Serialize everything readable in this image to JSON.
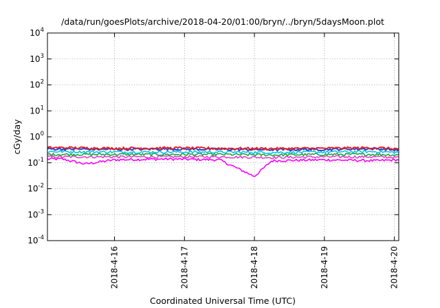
{
  "chart_data": {
    "type": "line",
    "title": "/data/run/goesPlots/archive/2018-04-20/01:00/bryn/../bryn/5daysMoon.plot",
    "xlabel": "Coordinated Universal Time (UTC)",
    "ylabel": "cGy/day",
    "yscale": "log",
    "ylim": [
      0.0001,
      10000
    ],
    "yticks": [
      {
        "value": 0.0001,
        "base": "10",
        "exp": "-4"
      },
      {
        "value": 0.001,
        "base": "10",
        "exp": "-3"
      },
      {
        "value": 0.01,
        "base": "10",
        "exp": "-2"
      },
      {
        "value": 0.1,
        "base": "10",
        "exp": "-1"
      },
      {
        "value": 1,
        "base": "10",
        "exp": "0"
      },
      {
        "value": 10,
        "base": "10",
        "exp": "1"
      },
      {
        "value": 100,
        "base": "10",
        "exp": "2"
      },
      {
        "value": 1000,
        "base": "10",
        "exp": "3"
      },
      {
        "value": 10000,
        "base": "10",
        "exp": "4"
      }
    ],
    "xlim": [
      "2018-04-15 01:00",
      "2018-04-20 01:30"
    ],
    "xticks": [
      "2018-4-16",
      "2018-4-17",
      "2018-4-18",
      "2018-4-19",
      "2018-4-20"
    ],
    "grid": true,
    "legend": "none",
    "series": [
      {
        "color": "#e0202a",
        "baseline": 0.36,
        "dips": [],
        "x": [
          "2018-04-15 06:00",
          "2018-04-16 00:00",
          "2018-04-16 18:00",
          "2018-04-17 12:00",
          "2018-04-18 06:00",
          "2018-04-19 00:00",
          "2018-04-19 18:00",
          "2018-04-20 01:00"
        ],
        "values": [
          0.38,
          0.36,
          0.37,
          0.36,
          0.35,
          0.36,
          0.38,
          0.34
        ]
      },
      {
        "color": "#2040e0",
        "baseline": 0.33,
        "dips": [],
        "x": [
          "2018-04-15 06:00",
          "2018-04-16 00:00",
          "2018-04-16 18:00",
          "2018-04-17 12:00",
          "2018-04-18 06:00",
          "2018-04-19 00:00",
          "2018-04-19 18:00",
          "2018-04-20 01:00"
        ],
        "values": [
          0.34,
          0.33,
          0.34,
          0.33,
          0.32,
          0.33,
          0.35,
          0.31
        ]
      },
      {
        "color": "#00c8e0",
        "baseline": 0.26,
        "dips": [],
        "x": [
          "2018-04-15 06:00",
          "2018-04-16 00:00",
          "2018-04-16 18:00",
          "2018-04-17 12:00",
          "2018-04-18 06:00",
          "2018-04-19 00:00",
          "2018-04-19 18:00",
          "2018-04-20 01:00"
        ],
        "values": [
          0.27,
          0.26,
          0.26,
          0.26,
          0.25,
          0.26,
          0.27,
          0.25
        ]
      },
      {
        "color": "#20a040",
        "baseline": 0.21,
        "dips": [],
        "x": [
          "2018-04-15 06:00",
          "2018-04-16 00:00",
          "2018-04-16 18:00",
          "2018-04-17 12:00",
          "2018-04-18 06:00",
          "2018-04-19 00:00",
          "2018-04-19 18:00",
          "2018-04-20 01:00"
        ],
        "values": [
          0.21,
          0.21,
          0.21,
          0.21,
          0.2,
          0.21,
          0.21,
          0.2
        ]
      },
      {
        "color": "#e040c0",
        "baseline": 0.17,
        "dips": [],
        "x": [
          "2018-04-15 06:00",
          "2018-04-16 00:00",
          "2018-04-16 18:00",
          "2018-04-17 12:00",
          "2018-04-18 06:00",
          "2018-04-19 00:00",
          "2018-04-19 18:00",
          "2018-04-20 01:00"
        ],
        "values": [
          0.17,
          0.17,
          0.17,
          0.17,
          0.16,
          0.17,
          0.17,
          0.16
        ]
      },
      {
        "color": "#ff00ff",
        "baseline": 0.14,
        "x": [
          "2018-04-15 06:00",
          "2018-04-15 14:00",
          "2018-04-16 00:00",
          "2018-04-16 18:00",
          "2018-04-17 12:00",
          "2018-04-18 00:00",
          "2018-04-18 06:00",
          "2018-04-19 00:00",
          "2018-04-19 18:00",
          "2018-04-20 01:00"
        ],
        "values": [
          0.14,
          0.09,
          0.13,
          0.14,
          0.13,
          0.03,
          0.12,
          0.13,
          0.12,
          0.13
        ]
      }
    ]
  }
}
